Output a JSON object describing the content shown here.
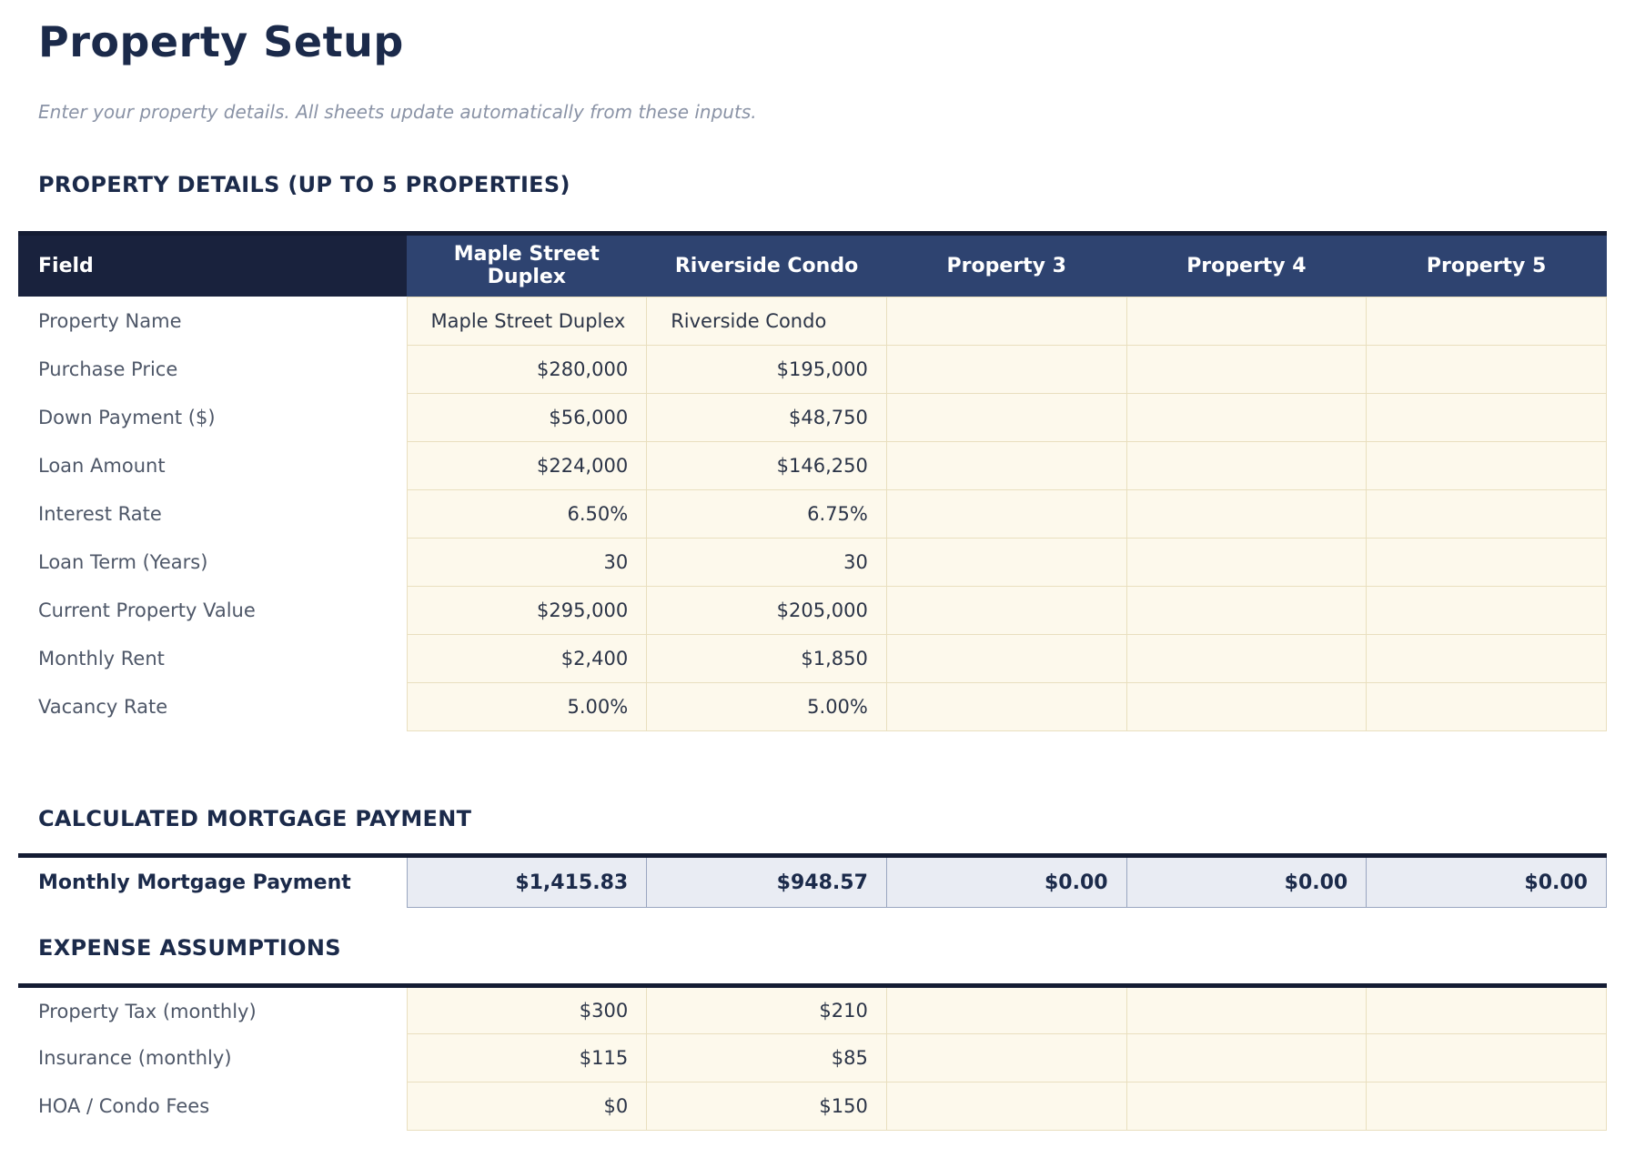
{
  "page": {
    "title": "Property Setup",
    "subtitle": "Enter your property details. All sheets update automatically from these inputs."
  },
  "colors": {
    "heading_navy": "#1b2a4a",
    "field_header_bg": "#19223d",
    "property_header_bg": "#2e4370",
    "table_top_border": "#141c33",
    "input_cell_bg": "#fdf9ec",
    "input_cell_border": "#e9dfbf",
    "calc_cell_bg": "#e9ecf3",
    "calc_cell_border": "#9aa6c0",
    "label_text": "#4e5768",
    "subtitle_text": "#8a93a6"
  },
  "details": {
    "heading": "PROPERTY DETAILS (UP TO 5 PROPERTIES)",
    "columns": [
      "Field",
      "Maple Street Duplex",
      "Riverside Condo",
      "Property 3",
      "Property 4",
      "Property 5"
    ],
    "rows": [
      {
        "label": "Property Name",
        "type": "text",
        "values": [
          "Maple Street Duplex",
          "Riverside Condo",
          "",
          "",
          ""
        ]
      },
      {
        "label": "Purchase Price",
        "type": "num",
        "values": [
          "$280,000",
          "$195,000",
          "",
          "",
          ""
        ]
      },
      {
        "label": "Down Payment ($)",
        "type": "num",
        "values": [
          "$56,000",
          "$48,750",
          "",
          "",
          ""
        ]
      },
      {
        "label": "Loan Amount",
        "type": "num",
        "values": [
          "$224,000",
          "$146,250",
          "",
          "",
          ""
        ]
      },
      {
        "label": "Interest Rate",
        "type": "num",
        "values": [
          "6.50%",
          "6.75%",
          "",
          "",
          ""
        ]
      },
      {
        "label": "Loan Term (Years)",
        "type": "num",
        "values": [
          "30",
          "30",
          "",
          "",
          ""
        ]
      },
      {
        "label": "Current Property Value",
        "type": "num",
        "values": [
          "$295,000",
          "$205,000",
          "",
          "",
          ""
        ]
      },
      {
        "label": "Monthly Rent",
        "type": "num",
        "values": [
          "$2,400",
          "$1,850",
          "",
          "",
          ""
        ]
      },
      {
        "label": "Vacancy Rate",
        "type": "num",
        "values": [
          "5.00%",
          "5.00%",
          "",
          "",
          ""
        ]
      }
    ]
  },
  "mortgage": {
    "heading": "CALCULATED MORTGAGE PAYMENT",
    "rows": [
      {
        "label": "Monthly Mortgage Payment",
        "type": "num",
        "values": [
          "$1,415.83",
          "$948.57",
          "$0.00",
          "$0.00",
          "$0.00"
        ]
      }
    ]
  },
  "expenses": {
    "heading": "EXPENSE ASSUMPTIONS",
    "rows": [
      {
        "label": "Property Tax (monthly)",
        "type": "num",
        "values": [
          "$300",
          "$210",
          "",
          "",
          ""
        ]
      },
      {
        "label": "Insurance (monthly)",
        "type": "num",
        "values": [
          "$115",
          "$85",
          "",
          "",
          ""
        ]
      },
      {
        "label": "HOA / Condo Fees",
        "type": "num",
        "values": [
          "$0",
          "$150",
          "",
          "",
          ""
        ]
      }
    ]
  }
}
